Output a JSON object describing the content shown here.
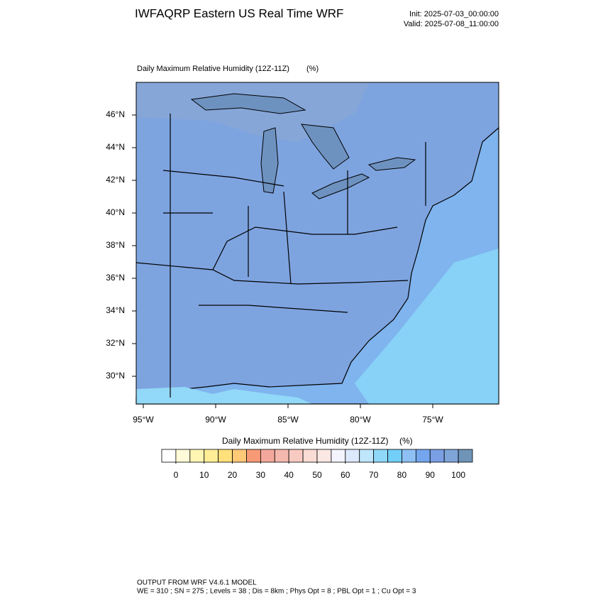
{
  "header": {
    "title": "IWFAQRP Eastern US Real Time WRF",
    "init": "Init: 2025-07-03_00:00:00",
    "valid": "Valid: 2025-07-08_11:00:00"
  },
  "map": {
    "title": "Daily Maximum Relative Humidity (12Z-11Z)",
    "units": "(%)",
    "lon_ticks": [
      {
        "value": -95,
        "label": "95°W"
      },
      {
        "value": -90,
        "label": "90°W"
      },
      {
        "value": -85,
        "label": "85°W"
      },
      {
        "value": -80,
        "label": "80°W"
      },
      {
        "value": -75,
        "label": "75°W"
      }
    ],
    "lat_ticks": [
      {
        "value": 30,
        "label": "30°N"
      },
      {
        "value": 32,
        "label": "32°N"
      },
      {
        "value": 34,
        "label": "34°N"
      },
      {
        "value": 36,
        "label": "36°N"
      },
      {
        "value": 38,
        "label": "38°N"
      },
      {
        "value": 40,
        "label": "40°N"
      },
      {
        "value": 42,
        "label": "42°N"
      },
      {
        "value": 44,
        "label": "44°N"
      },
      {
        "value": 46,
        "label": "46°N"
      }
    ]
  },
  "colorbar": {
    "title": "Daily Maximum Relative Humidity (12Z-11Z)",
    "units": "(%)",
    "ticks": [
      0,
      10,
      20,
      30,
      40,
      50,
      60,
      70,
      80,
      90,
      100
    ],
    "colors": [
      "#ffffff",
      "#fffbd8",
      "#fff6b4",
      "#ffee96",
      "#ffe07a",
      "#ffc978",
      "#f99a76",
      "#f4a89c",
      "#f5b8ae",
      "#f8cbc2",
      "#fadcd4",
      "#fbe8e4",
      "#f4f4ff",
      "#dce8fc",
      "#bfe6fa",
      "#8fd8f8",
      "#72cff8",
      "#8ec0f4",
      "#74a6ee",
      "#7a9fe4",
      "#7ea4d8",
      "#6f94b8"
    ]
  },
  "footer": {
    "line1": "OUTPUT FROM WRF V4.6.1 MODEL",
    "line2": "WE = 310 ; SN = 275 ; Levels = 38 ; Dis = 8km ; Phys Opt = 8 ; PBL Opt = 1 ; Cu Opt = 3"
  }
}
